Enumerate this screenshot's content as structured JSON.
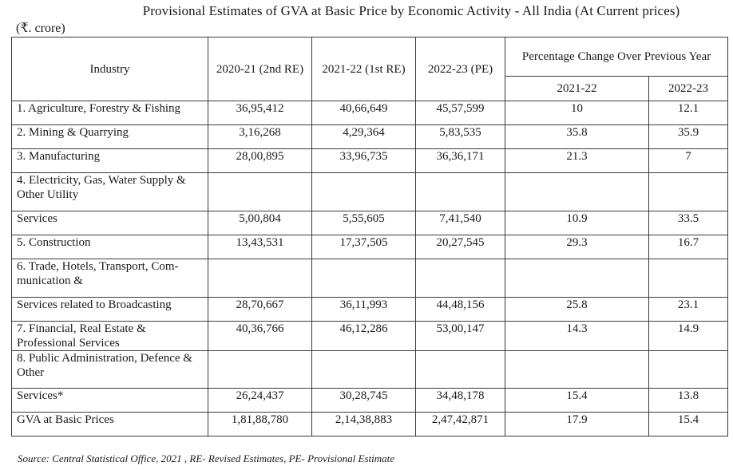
{
  "title": "Provisional Estimates of GVA at Basic Price by Economic Activity - All India (At Current prices)",
  "unit": "(₹. crore)",
  "table": {
    "headers": {
      "industry": "Industry",
      "col1": "2020-21 (2nd RE)",
      "col2": "2021-22 (1st RE)",
      "col3": "2022-23 (PE)",
      "pct_group": "Percentage Change Over Previous Year",
      "pct1": "2021-22",
      "pct2": "2022-23"
    },
    "rows": [
      {
        "industry": "1. Agriculture, Forestry & Fishing",
        "v1": "36,95,412",
        "v2": "40,66,649",
        "v3": "45,57,599",
        "p1": "10",
        "p2": "12.1"
      },
      {
        "industry": "2. Mining & Quarrying",
        "v1": "3,16,268",
        "v2": "4,29,364",
        "v3": "5,83,535",
        "p1": "35.8",
        "p2": "35.9"
      },
      {
        "industry": "3. Manufacturing",
        "v1": "28,00,895",
        "v2": "33,96,735",
        "v3": "36,36,171",
        "p1": "21.3",
        "p2": "7"
      },
      {
        "industry": "4. Electricity, Gas, Water Supply & Other Utility",
        "v1": "",
        "v2": "",
        "v3": "",
        "p1": "",
        "p2": ""
      },
      {
        "industry": "Services",
        "v1": "5,00,804",
        "v2": "5,55,605",
        "v3": "7,41,540",
        "p1": "10.9",
        "p2": "33.5"
      },
      {
        "industry": "5. Construction",
        "v1": "13,43,531",
        "v2": "17,37,505",
        "v3": "20,27,545",
        "p1": "29.3",
        "p2": "16.7"
      },
      {
        "industry": "6. Trade, Hotels, Transport, Com-munication &",
        "v1": "",
        "v2": "",
        "v3": "",
        "p1": "",
        "p2": ""
      },
      {
        "industry": "Services related to Broadcasting",
        "v1": "28,70,667",
        "v2": "36,11,993",
        "v3": "44,48,156",
        "p1": "25.8",
        "p2": "23.1"
      },
      {
        "industry": "7. Financial, Real Estate & Professional Services",
        "v1": "40,36,766",
        "v2": "46,12,286",
        "v3": "53,00,147",
        "p1": "14.3",
        "p2": "14.9"
      },
      {
        "industry": "8. Public Administration, Defence & Other",
        "v1": "",
        "v2": "",
        "v3": "",
        "p1": "",
        "p2": ""
      },
      {
        "industry": "Services*",
        "v1": "26,24,437",
        "v2": "30,28,745",
        "v3": "34,48,178",
        "p1": "15.4",
        "p2": "13.8"
      },
      {
        "industry": "GVA at Basic Prices",
        "v1": "1,81,88,780",
        "v2": "2,14,38,883",
        "v3": "2,47,42,871",
        "p1": "17.9",
        "p2": "15.4"
      }
    ]
  },
  "source": "Source: Central Statistical Office, 2021 , RE- Revised Estimates, PE- Provisional Estimate"
}
